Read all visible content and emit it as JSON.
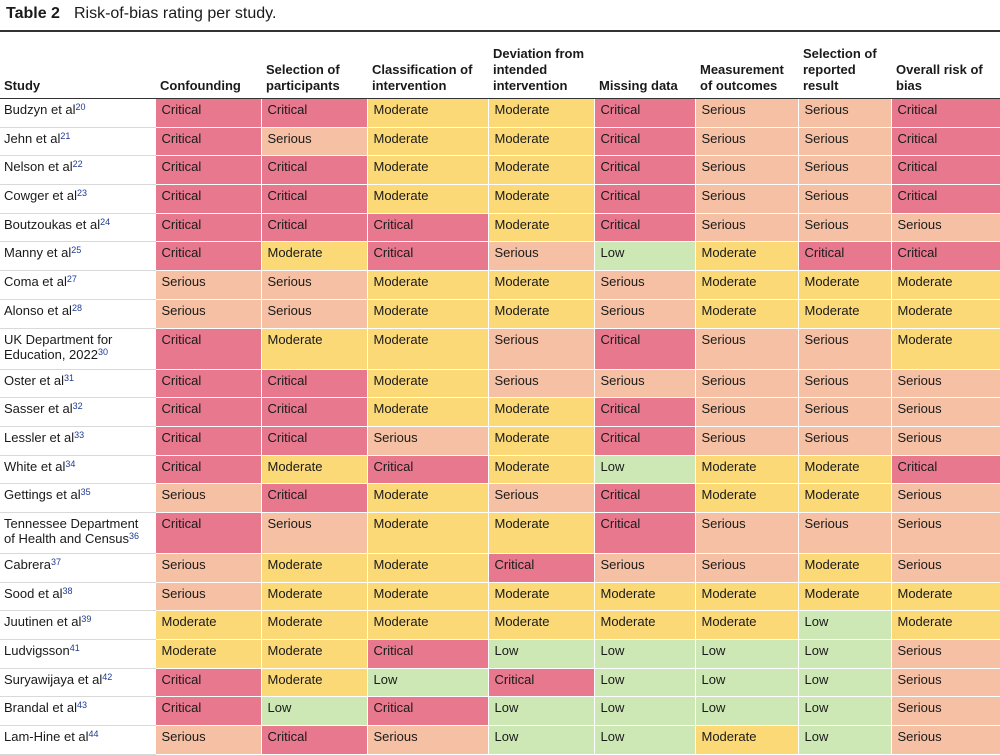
{
  "caption": {
    "number": "Table 2",
    "title": "Risk-of-bias rating per study."
  },
  "colors": {
    "Critical": "#e8788e",
    "Serious": "#f5c0a3",
    "Moderate": "#fbd977",
    "Low": "#cde8b5"
  },
  "headers": [
    "Study",
    "Confounding",
    "Selection of participants",
    "Classification of intervention",
    "Deviation from intended intervention",
    "Missing data",
    "Measurement of outcomes",
    "Selection of reported result",
    "Overall risk of bias"
  ],
  "rows": [
    {
      "study": "Budzyn et al",
      "ref": "20",
      "ratings": [
        "Critical",
        "Critical",
        "Moderate",
        "Moderate",
        "Critical",
        "Serious",
        "Serious",
        "Critical"
      ]
    },
    {
      "study": "Jehn et al",
      "ref": "21",
      "ratings": [
        "Critical",
        "Serious",
        "Moderate",
        "Moderate",
        "Critical",
        "Serious",
        "Serious",
        "Critical"
      ]
    },
    {
      "study": "Nelson et al",
      "ref": "22",
      "ratings": [
        "Critical",
        "Critical",
        "Moderate",
        "Moderate",
        "Critical",
        "Serious",
        "Serious",
        "Critical"
      ]
    },
    {
      "study": "Cowger et al",
      "ref": "23",
      "ratings": [
        "Critical",
        "Critical",
        "Moderate",
        "Moderate",
        "Critical",
        "Serious",
        "Serious",
        "Critical"
      ]
    },
    {
      "study": "Boutzoukas et al",
      "ref": "24",
      "ratings": [
        "Critical",
        "Critical",
        "Critical",
        "Moderate",
        "Critical",
        "Serious",
        "Serious",
        "Serious"
      ]
    },
    {
      "study": "Manny et al",
      "ref": "25",
      "ratings": [
        "Critical",
        "Moderate",
        "Critical",
        "Serious",
        "Low",
        "Moderate",
        "Critical",
        "Critical"
      ]
    },
    {
      "study": "Coma et al",
      "ref": "27",
      "ratings": [
        "Serious",
        "Serious",
        "Moderate",
        "Moderate",
        "Serious",
        "Moderate",
        "Moderate",
        "Moderate"
      ]
    },
    {
      "study": "Alonso et al",
      "ref": "28",
      "ratings": [
        "Serious",
        "Serious",
        "Moderate",
        "Moderate",
        "Serious",
        "Moderate",
        "Moderate",
        "Moderate"
      ]
    },
    {
      "study": "UK Department for Education, 2022",
      "ref": "30",
      "tall": true,
      "ratings": [
        "Critical",
        "Moderate",
        "Moderate",
        "Serious",
        "Critical",
        "Serious",
        "Serious",
        "Moderate"
      ]
    },
    {
      "study": "Oster et al",
      "ref": "31",
      "ratings": [
        "Critical",
        "Critical",
        "Moderate",
        "Serious",
        "Serious",
        "Serious",
        "Serious",
        "Serious"
      ]
    },
    {
      "study": "Sasser et al",
      "ref": "32",
      "ratings": [
        "Critical",
        "Critical",
        "Moderate",
        "Moderate",
        "Critical",
        "Serious",
        "Serious",
        "Serious"
      ]
    },
    {
      "study": "Lessler et al",
      "ref": "33",
      "ratings": [
        "Critical",
        "Critical",
        "Serious",
        "Moderate",
        "Critical",
        "Serious",
        "Serious",
        "Serious"
      ]
    },
    {
      "study": "White et al",
      "ref": "34",
      "ratings": [
        "Critical",
        "Moderate",
        "Critical",
        "Moderate",
        "Low",
        "Moderate",
        "Moderate",
        "Critical"
      ]
    },
    {
      "study": "Gettings et al",
      "ref": "35",
      "ratings": [
        "Serious",
        "Critical",
        "Moderate",
        "Serious",
        "Critical",
        "Moderate",
        "Moderate",
        "Serious"
      ]
    },
    {
      "study": "Tennessee Department of Health and Census",
      "ref": "36",
      "tall": true,
      "ratings": [
        "Critical",
        "Serious",
        "Moderate",
        "Moderate",
        "Critical",
        "Serious",
        "Serious",
        "Serious"
      ]
    },
    {
      "study": "Cabrera",
      "ref": "37",
      "ratings": [
        "Serious",
        "Moderate",
        "Moderate",
        "Critical",
        "Serious",
        "Serious",
        "Moderate",
        "Serious"
      ]
    },
    {
      "study": "Sood et al",
      "ref": "38",
      "ratings": [
        "Serious",
        "Moderate",
        "Moderate",
        "Moderate",
        "Moderate",
        "Moderate",
        "Moderate",
        "Moderate"
      ]
    },
    {
      "study": "Juutinen et al",
      "ref": "39",
      "ratings": [
        "Moderate",
        "Moderate",
        "Moderate",
        "Moderate",
        "Moderate",
        "Moderate",
        "Low",
        "Moderate"
      ]
    },
    {
      "study": "Ludvigsson",
      "ref": "41",
      "ratings": [
        "Moderate",
        "Moderate",
        "Critical",
        "Low",
        "Low",
        "Low",
        "Low",
        "Serious"
      ]
    },
    {
      "study": "Suryawijaya et al",
      "ref": "42",
      "ratings": [
        "Critical",
        "Moderate",
        "Low",
        "Critical",
        "Low",
        "Low",
        "Low",
        "Serious"
      ]
    },
    {
      "study": "Brandal et al",
      "ref": "43",
      "ratings": [
        "Critical",
        "Low",
        "Critical",
        "Low",
        "Low",
        "Low",
        "Low",
        "Serious"
      ]
    },
    {
      "study": "Lam-Hine et al",
      "ref": "44",
      "ratings": [
        "Serious",
        "Critical",
        "Serious",
        "Low",
        "Low",
        "Moderate",
        "Low",
        "Serious"
      ]
    }
  ]
}
